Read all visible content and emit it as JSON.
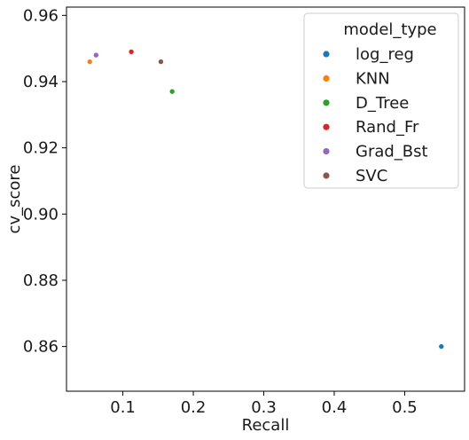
{
  "chart_data": {
    "type": "scatter",
    "title": "",
    "xlabel": "Recall",
    "ylabel": "cv_score",
    "xlim": [
      0.02,
      0.585
    ],
    "ylim": [
      0.8465,
      0.9625
    ],
    "x_ticks": [
      0.1,
      0.2,
      0.3,
      0.4,
      0.5
    ],
    "x_tick_labels": [
      "0.1",
      "0.2",
      "0.3",
      "0.4",
      "0.5"
    ],
    "y_ticks": [
      0.86,
      0.88,
      0.9,
      0.92,
      0.94,
      0.96
    ],
    "y_tick_labels": [
      "0.86",
      "0.88",
      "0.90",
      "0.92",
      "0.94",
      "0.96"
    ],
    "grid": false,
    "legend": {
      "title": "model_type",
      "placement": "top-right"
    },
    "series": [
      {
        "name": "log_reg",
        "color": "#1f77b4",
        "points": [
          {
            "x": 0.552,
            "y": 0.86
          }
        ]
      },
      {
        "name": "KNN",
        "color": "#ff7f0e",
        "points": [
          {
            "x": 0.053,
            "y": 0.946
          }
        ]
      },
      {
        "name": "D_Tree",
        "color": "#2ca02c",
        "points": [
          {
            "x": 0.17,
            "y": 0.937
          }
        ]
      },
      {
        "name": "Rand_Fr",
        "color": "#d62728",
        "points": [
          {
            "x": 0.112,
            "y": 0.949
          }
        ]
      },
      {
        "name": "Grad_Bst",
        "color": "#9467bd",
        "points": [
          {
            "x": 0.062,
            "y": 0.948
          }
        ]
      },
      {
        "name": "SVC",
        "color": "#8c564b",
        "points": [
          {
            "x": 0.154,
            "y": 0.946
          }
        ]
      }
    ]
  }
}
